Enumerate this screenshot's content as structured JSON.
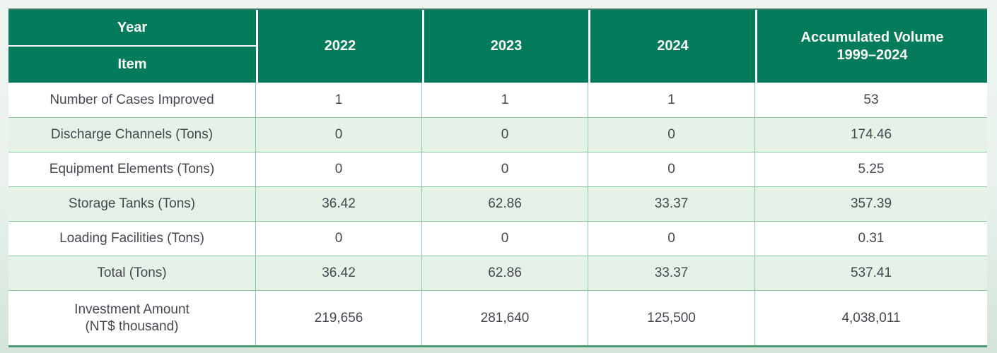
{
  "table": {
    "header": {
      "corner_top": "Year",
      "corner_bottom": "Item",
      "columns": [
        "2022",
        "2023",
        "2024"
      ],
      "accumulated": "Accumulated Volume\n1999–2024"
    },
    "rows": [
      {
        "label": "Number of Cases Improved",
        "values": [
          "1",
          "1",
          "1",
          "53"
        ]
      },
      {
        "label": "Discharge Channels (Tons)",
        "values": [
          "0",
          "0",
          "0",
          "174.46"
        ]
      },
      {
        "label": "Equipment Elements (Tons)",
        "values": [
          "0",
          "0",
          "0",
          "5.25"
        ]
      },
      {
        "label": "Storage Tanks (Tons)",
        "values": [
          "36.42",
          "62.86",
          "33.37",
          "357.39"
        ]
      },
      {
        "label": "Loading Facilities (Tons)",
        "values": [
          "0",
          "0",
          "0",
          "0.31"
        ]
      },
      {
        "label": "Total (Tons)",
        "values": [
          "36.42",
          "62.86",
          "33.37",
          "537.41"
        ]
      },
      {
        "label": "Investment Amount\n(NT$ thousand)",
        "values": [
          "219,656",
          "281,640",
          "125,500",
          "4,038,011"
        ]
      }
    ],
    "colors": {
      "header_bg": "#047c5c",
      "header_text": "#fdfdf8",
      "row_alt_bg": "#e6f1e8",
      "row_bg": "#ffffff",
      "gridline": "#8bc9a3",
      "bottom_rule": "#4a9c74",
      "body_text": "#45484f"
    }
  }
}
